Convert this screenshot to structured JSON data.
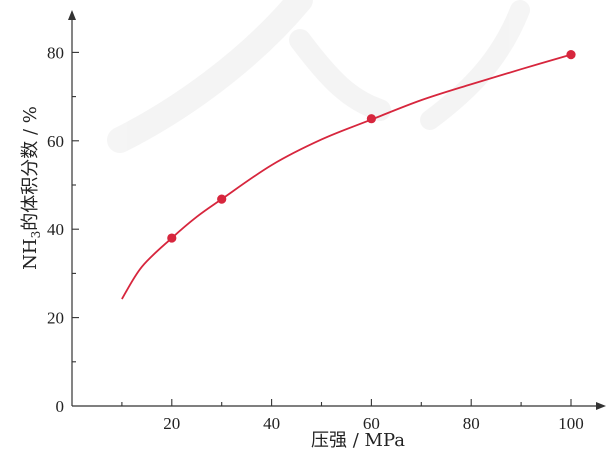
{
  "chart_data": {
    "type": "line",
    "xlabel": "压强 / MPa",
    "ylabel_main": "NH",
    "ylabel_sub": "3",
    "ylabel_rest": "的体积分数 / %",
    "xlim": [
      0,
      105
    ],
    "ylim": [
      0,
      85
    ],
    "x_ticks": [
      0,
      20,
      40,
      60,
      80,
      100
    ],
    "x_tick_labels": [
      "20",
      "40",
      "60",
      "80",
      "100"
    ],
    "y_ticks": [
      0,
      20,
      40,
      60,
      80
    ],
    "y_tick_labels": [
      "0",
      "20",
      "40",
      "60",
      "80"
    ],
    "curve": {
      "x": [
        10,
        14,
        20,
        25,
        30,
        40,
        50,
        60,
        70,
        80,
        90,
        100
      ],
      "y": [
        24.2,
        31.5,
        38.0,
        42.8,
        46.8,
        54.5,
        60.3,
        64.8,
        69.2,
        72.8,
        76.2,
        79.5
      ]
    },
    "points": [
      {
        "x": 20,
        "y": 38.0
      },
      {
        "x": 30,
        "y": 46.8
      },
      {
        "x": 60,
        "y": 65.0
      },
      {
        "x": 100,
        "y": 79.5
      }
    ],
    "colors": {
      "series": "#d7263d",
      "axis": "#333333"
    }
  }
}
